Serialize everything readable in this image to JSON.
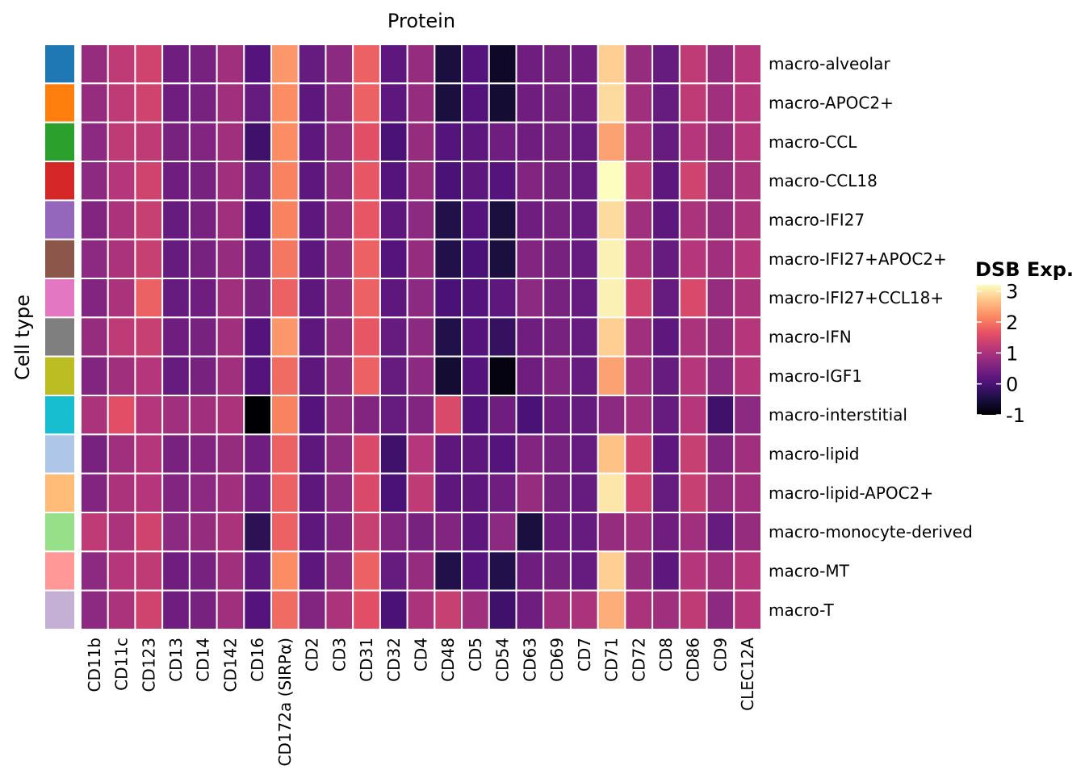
{
  "chart_data": {
    "type": "heatmap",
    "title": "Protein",
    "ylabel": "Cell type",
    "legend": {
      "title": "DSB Exp.",
      "ticks": [
        3,
        2,
        1,
        0,
        -1
      ],
      "range": [
        -1,
        3.2
      ],
      "position": "right",
      "colormap": "magma"
    },
    "x_categories": [
      "CD11b",
      "CD11c",
      "CD123",
      "CD13",
      "CD14",
      "CD142",
      "CD16",
      "CD172a (SIRPα)",
      "CD2",
      "CD3",
      "CD31",
      "CD32",
      "CD4",
      "CD48",
      "CD5",
      "CD54",
      "CD63",
      "CD69",
      "CD7",
      "CD71",
      "CD72",
      "CD8",
      "CD86",
      "CD9",
      "CLEC12A"
    ],
    "y_categories": [
      "macro-alveolar",
      "macro-APOC2+",
      "macro-CCL",
      "macro-CCL18",
      "macro-IFI27",
      "macro-IFI27+APOC2+",
      "macro-IFI27+CCL18+",
      "macro-IFN",
      "macro-IGF1",
      "macro-interstitial",
      "macro-lipid",
      "macro-lipid-APOC2+",
      "macro-monocyte-derived",
      "macro-MT",
      "macro-T"
    ],
    "row_colors": [
      "#1f77b4",
      "#ff7f0e",
      "#2ca02c",
      "#d62728",
      "#9467bd",
      "#8c564b",
      "#e377c2",
      "#7f7f7f",
      "#bcbd22",
      "#17becf",
      "#aec7e8",
      "#ffbb78",
      "#98df8a",
      "#ff9896",
      "#c5b0d5"
    ],
    "values": [
      [
        0.8,
        1.2,
        1.4,
        0.4,
        0.5,
        0.9,
        0.1,
        2.3,
        0.3,
        0.7,
        1.8,
        0.2,
        0.8,
        -0.5,
        0.1,
        -0.7,
        0.4,
        0.5,
        0.4,
        2.8,
        0.8,
        0.3,
        1.2,
        0.8,
        1.1
      ],
      [
        0.8,
        1.2,
        1.4,
        0.4,
        0.5,
        0.9,
        0.3,
        2.2,
        0.2,
        0.7,
        1.8,
        0.2,
        0.8,
        -0.5,
        0.1,
        -0.6,
        0.4,
        0.5,
        0.4,
        2.9,
        0.9,
        0.3,
        1.2,
        0.9,
        1.1
      ],
      [
        0.7,
        1.2,
        1.2,
        0.5,
        0.6,
        0.9,
        -0.1,
        2.2,
        0.2,
        0.7,
        1.6,
        0.0,
        0.8,
        0.1,
        0.2,
        0.4,
        0.4,
        0.5,
        0.3,
        2.4,
        1.0,
        0.3,
        1.1,
        0.8,
        1.1
      ],
      [
        0.7,
        1.1,
        1.4,
        0.4,
        0.5,
        0.9,
        0.3,
        2.1,
        0.2,
        0.7,
        1.7,
        0.1,
        0.8,
        0.0,
        0.2,
        0.1,
        0.6,
        0.5,
        0.3,
        3.2,
        1.2,
        0.2,
        1.4,
        0.8,
        1.0
      ],
      [
        0.6,
        1.0,
        1.3,
        0.3,
        0.5,
        0.9,
        0.1,
        2.1,
        0.2,
        0.7,
        1.7,
        0.2,
        0.7,
        -0.4,
        0.1,
        -0.5,
        0.4,
        0.5,
        0.3,
        2.9,
        0.9,
        0.2,
        1.0,
        0.8,
        1.0
      ],
      [
        0.7,
        1.0,
        1.3,
        0.3,
        0.5,
        0.8,
        0.3,
        2.0,
        0.2,
        0.7,
        1.8,
        0.1,
        0.8,
        -0.4,
        0.0,
        -0.5,
        0.6,
        0.5,
        0.3,
        3.1,
        1.0,
        0.3,
        1.1,
        0.9,
        1.1
      ],
      [
        0.6,
        1.0,
        1.8,
        0.3,
        0.4,
        0.9,
        0.5,
        1.8,
        0.2,
        0.7,
        1.8,
        0.2,
        0.7,
        0.0,
        0.1,
        0.2,
        0.7,
        0.5,
        0.3,
        3.1,
        1.4,
        0.3,
        1.5,
        0.8,
        1.0
      ],
      [
        0.8,
        1.2,
        1.3,
        0.4,
        0.5,
        0.9,
        0.1,
        2.3,
        0.2,
        0.7,
        1.7,
        0.3,
        0.7,
        -0.4,
        0.1,
        -0.2,
        0.4,
        0.5,
        0.3,
        2.8,
        0.9,
        0.2,
        1.0,
        0.8,
        1.1
      ],
      [
        0.6,
        0.9,
        1.1,
        0.3,
        0.5,
        0.9,
        0.1,
        1.9,
        0.2,
        0.7,
        1.8,
        0.3,
        0.7,
        -0.6,
        0.1,
        -0.9,
        0.4,
        0.6,
        0.3,
        2.4,
        0.9,
        0.3,
        1.1,
        0.7,
        1.1
      ],
      [
        1.0,
        1.6,
        1.1,
        0.9,
        0.9,
        1.0,
        -1.0,
        2.1,
        0.1,
        0.7,
        0.6,
        0.3,
        0.6,
        1.5,
        0.1,
        0.4,
        0.0,
        0.4,
        0.3,
        0.7,
        0.9,
        0.3,
        1.1,
        -0.1,
        0.7
      ],
      [
        0.5,
        0.9,
        1.1,
        0.5,
        0.6,
        0.8,
        0.4,
        1.8,
        0.2,
        0.7,
        1.5,
        -0.1,
        1.1,
        0.2,
        0.2,
        0.1,
        0.6,
        0.5,
        0.3,
        2.7,
        1.4,
        0.2,
        1.3,
        0.6,
        0.9
      ],
      [
        0.6,
        1.0,
        1.1,
        0.6,
        0.7,
        0.9,
        0.4,
        1.8,
        0.2,
        0.7,
        1.5,
        0.0,
        1.2,
        0.2,
        0.2,
        0.4,
        0.8,
        0.5,
        0.3,
        3.0,
        1.4,
        0.3,
        1.3,
        0.8,
        0.9
      ],
      [
        1.2,
        1.0,
        1.4,
        0.7,
        0.8,
        1.0,
        -0.3,
        1.8,
        0.2,
        0.6,
        1.3,
        0.6,
        0.5,
        0.6,
        0.2,
        0.7,
        -0.5,
        0.4,
        0.3,
        0.8,
        0.9,
        0.4,
        0.9,
        0.3,
        0.8
      ],
      [
        0.7,
        1.1,
        1.2,
        0.4,
        0.5,
        0.9,
        0.2,
        2.2,
        0.2,
        0.7,
        1.8,
        0.3,
        0.8,
        -0.4,
        0.1,
        -0.4,
        0.4,
        0.5,
        0.3,
        2.8,
        0.8,
        0.2,
        1.1,
        0.9,
        1.1
      ],
      [
        0.7,
        1.0,
        1.4,
        0.4,
        0.5,
        0.9,
        0.1,
        1.9,
        0.6,
        1.0,
        1.6,
        0.0,
        1.0,
        1.3,
        0.9,
        -0.1,
        0.4,
        0.9,
        1.0,
        2.5,
        1.0,
        0.9,
        1.2,
        0.7,
        1.1
      ]
    ]
  }
}
